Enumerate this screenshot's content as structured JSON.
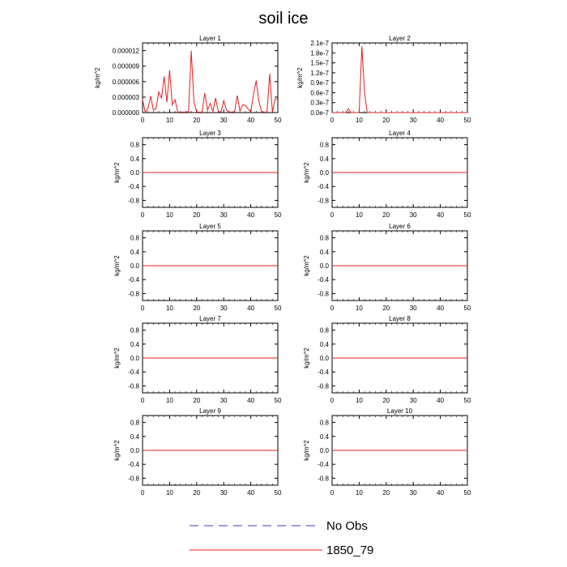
{
  "figure": {
    "title": "soil ice",
    "legend": [
      {
        "label": "No Obs",
        "color": "#3b3bc4",
        "dash": true
      },
      {
        "label": "1850_79",
        "color": "#e02020",
        "dash": false
      }
    ]
  },
  "chart_data": [
    {
      "type": "line",
      "title": "Layer 1",
      "ylabel": "kg/m^2",
      "xlim": [
        0,
        50
      ],
      "xticks": [
        0,
        10,
        20,
        30,
        40,
        50
      ],
      "ylim": [
        0,
        1.35e-05
      ],
      "yticks": [
        0,
        3e-06,
        6e-06,
        9e-06,
        1.2e-05
      ],
      "ytick_labels": [
        "0.000000",
        "0.000003",
        "0.000006",
        "0.000009",
        "0.000012"
      ],
      "series": [
        {
          "name": "1850_79",
          "color": "#e02020",
          "x": [
            0,
            1,
            2,
            3,
            4,
            5,
            6,
            7,
            8,
            9,
            10,
            11,
            12,
            13,
            14,
            15,
            16,
            17,
            18,
            19,
            20,
            21,
            22,
            23,
            24,
            25,
            26,
            27,
            28,
            29,
            30,
            31,
            32,
            33,
            34,
            35,
            36,
            37,
            38,
            39,
            40,
            41,
            42,
            43,
            44,
            45,
            46,
            47,
            48,
            49,
            50
          ],
          "y": [
            2.5e-06,
            1e-07,
            8e-07,
            3.2e-06,
            5e-07,
            8e-07,
            4e-06,
            2.8e-06,
            7e-06,
            2e-06,
            8.2e-06,
            1.5e-06,
            2.5e-06,
            1e-07,
            1e-07,
            1e-07,
            1e-07,
            2e-07,
            1.2e-05,
            2e-06,
            1e-07,
            1e-07,
            1e-07,
            3.8e-06,
            5e-07,
            1.8e-06,
            2e-07,
            2.8e-06,
            2e-07,
            1e-07,
            2.3e-06,
            5e-07,
            1e-07,
            1e-07,
            2e-07,
            3.3e-06,
            3e-07,
            1.5e-06,
            1.4e-06,
            7e-07,
            1e-07,
            3.5e-06,
            6.2e-06,
            2.2e-06,
            2e-07,
            1e-07,
            1e-07,
            7.5e-06,
            1e-07,
            2.6e-06,
            2.7e-06
          ]
        }
      ]
    },
    {
      "type": "line",
      "title": "Layer 2",
      "ylabel": "kg/m^2",
      "xlim": [
        0,
        50
      ],
      "xticks": [
        0,
        10,
        20,
        30,
        40,
        50
      ],
      "ylim": [
        0,
        2.1e-07
      ],
      "yticks": [
        0,
        3e-08,
        6e-08,
        9e-08,
        1.2e-07,
        1.5e-07,
        1.8e-07,
        2.1e-07
      ],
      "ytick_labels": [
        "0.0e-7",
        "0.3e-7",
        "0.6e-7",
        "0.9e-7",
        "1.2e-7",
        "1.5e-7",
        "1.8e-7",
        "2.1e-7"
      ],
      "series": [
        {
          "name": "1850_79",
          "color": "#e02020",
          "x": [
            0,
            5,
            6,
            7,
            10,
            11,
            12,
            13,
            50
          ],
          "y": [
            0,
            0,
            1.2e-08,
            0,
            0,
            2e-07,
            6e-08,
            0,
            0
          ]
        }
      ]
    },
    {
      "type": "line",
      "title": "Layer 3",
      "ylabel": "kg/m^2",
      "xlim": [
        0,
        50
      ],
      "xticks": [
        0,
        10,
        20,
        30,
        40,
        50
      ],
      "ylim": [
        -1,
        1
      ],
      "yticks": [
        0.8,
        0.4,
        0.0,
        -0.4,
        -0.8
      ],
      "ytick_labels": [
        "0.8",
        "0.4",
        "0.0",
        "-0.4",
        "-0.8"
      ],
      "series": [
        {
          "name": "1850_79",
          "color": "#e02020",
          "x": [
            0,
            50
          ],
          "y": [
            0,
            0
          ]
        }
      ]
    },
    {
      "type": "line",
      "title": "Layer 4",
      "ylabel": "kg/m^2",
      "xlim": [
        0,
        50
      ],
      "xticks": [
        0,
        10,
        20,
        30,
        40,
        50
      ],
      "ylim": [
        -1,
        1
      ],
      "yticks": [
        0.8,
        0.4,
        0.0,
        -0.4,
        -0.8
      ],
      "ytick_labels": [
        "0.8",
        "0.4",
        "0.0",
        "-0.4",
        "-0.8"
      ],
      "series": [
        {
          "name": "1850_79",
          "color": "#e02020",
          "x": [
            0,
            50
          ],
          "y": [
            0,
            0
          ]
        }
      ]
    },
    {
      "type": "line",
      "title": "Layer 5",
      "ylabel": "kg/m^2",
      "xlim": [
        0,
        50
      ],
      "xticks": [
        0,
        10,
        20,
        30,
        40,
        50
      ],
      "ylim": [
        -1,
        1
      ],
      "yticks": [
        0.8,
        0.4,
        0.0,
        -0.4,
        -0.8
      ],
      "ytick_labels": [
        "0.8",
        "0.4",
        "0.0",
        "-0.4",
        "-0.8"
      ],
      "series": [
        {
          "name": "1850_79",
          "color": "#e02020",
          "x": [
            0,
            50
          ],
          "y": [
            0,
            0
          ]
        }
      ]
    },
    {
      "type": "line",
      "title": "Layer 6",
      "ylabel": "kg/m^2",
      "xlim": [
        0,
        50
      ],
      "xticks": [
        0,
        10,
        20,
        30,
        40,
        50
      ],
      "ylim": [
        -1,
        1
      ],
      "yticks": [
        0.8,
        0.4,
        0.0,
        -0.4,
        -0.8
      ],
      "ytick_labels": [
        "0.8",
        "0.4",
        "0.0",
        "-0.4",
        "-0.8"
      ],
      "series": [
        {
          "name": "1850_79",
          "color": "#e02020",
          "x": [
            0,
            50
          ],
          "y": [
            0,
            0
          ]
        }
      ]
    },
    {
      "type": "line",
      "title": "Layer 7",
      "ylabel": "kg/m^2",
      "xlim": [
        0,
        50
      ],
      "xticks": [
        0,
        10,
        20,
        30,
        40,
        50
      ],
      "ylim": [
        -1,
        1
      ],
      "yticks": [
        0.8,
        0.4,
        0.0,
        -0.4,
        -0.8
      ],
      "ytick_labels": [
        "0.8",
        "0.4",
        "0.0",
        "-0.4",
        "-0.8"
      ],
      "series": [
        {
          "name": "1850_79",
          "color": "#e02020",
          "x": [
            0,
            50
          ],
          "y": [
            0,
            0
          ]
        }
      ]
    },
    {
      "type": "line",
      "title": "Layer 8",
      "ylabel": "kg/m^2",
      "xlim": [
        0,
        50
      ],
      "xticks": [
        0,
        10,
        20,
        30,
        40,
        50
      ],
      "ylim": [
        -1,
        1
      ],
      "yticks": [
        0.8,
        0.4,
        0.0,
        -0.4,
        -0.8
      ],
      "ytick_labels": [
        "0.8",
        "0.4",
        "0.0",
        "-0.4",
        "-0.8"
      ],
      "series": [
        {
          "name": "1850_79",
          "color": "#e02020",
          "x": [
            0,
            50
          ],
          "y": [
            0,
            0
          ]
        }
      ]
    },
    {
      "type": "line",
      "title": "Layer 9",
      "ylabel": "kg/m^2",
      "xlim": [
        0,
        50
      ],
      "xticks": [
        0,
        10,
        20,
        30,
        40,
        50
      ],
      "ylim": [
        -1,
        1
      ],
      "yticks": [
        0.8,
        0.4,
        0.0,
        -0.4,
        -0.8
      ],
      "ytick_labels": [
        "0.8",
        "0.4",
        "0.0",
        "-0.4",
        "-0.8"
      ],
      "series": [
        {
          "name": "1850_79",
          "color": "#e02020",
          "x": [
            0,
            50
          ],
          "y": [
            0,
            0
          ]
        }
      ]
    },
    {
      "type": "line",
      "title": "Layer 10",
      "ylabel": "kg/m^2",
      "xlim": [
        0,
        50
      ],
      "xticks": [
        0,
        10,
        20,
        30,
        40,
        50
      ],
      "ylim": [
        -1,
        1
      ],
      "yticks": [
        0.8,
        0.4,
        0.0,
        -0.4,
        -0.8
      ],
      "ytick_labels": [
        "0.8",
        "0.4",
        "0.0",
        "-0.4",
        "-0.8"
      ],
      "series": [
        {
          "name": "1850_79",
          "color": "#e02020",
          "x": [
            0,
            50
          ],
          "y": [
            0,
            0
          ]
        }
      ]
    }
  ]
}
